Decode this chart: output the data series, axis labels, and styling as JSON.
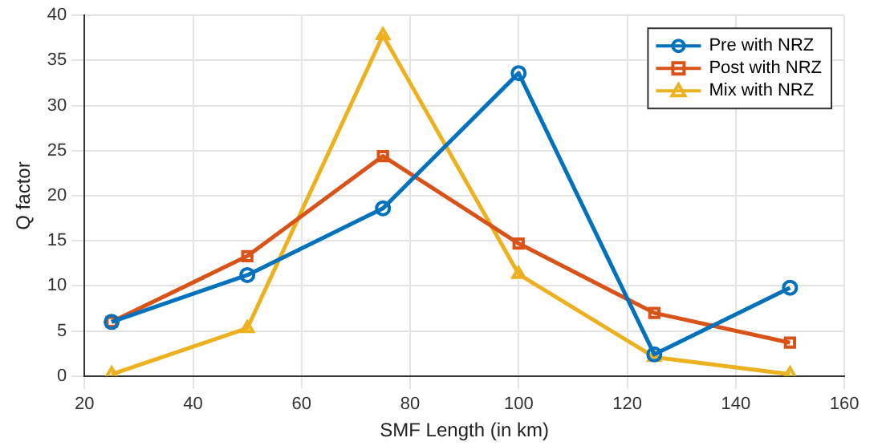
{
  "chart_data": {
    "type": "line",
    "xlabel": "SMF Length (in km)",
    "ylabel": "Q factor",
    "x": [
      25,
      50,
      75,
      100,
      125,
      150
    ],
    "series": [
      {
        "name": "Pre with NRZ",
        "color": "#0072bd",
        "marker": "circle",
        "values": [
          6,
          11.2,
          18.6,
          33.6,
          2.4,
          9.8
        ]
      },
      {
        "name": "Post with NRZ",
        "color": "#d95319",
        "marker": "square",
        "values": [
          6,
          13.3,
          24.4,
          14.7,
          7,
          3.7
        ]
      },
      {
        "name": "Mix with NRZ",
        "color": "#edb120",
        "marker": "triangle",
        "values": [
          0.2,
          5.3,
          37.8,
          11.3,
          2.1,
          0.2
        ]
      }
    ],
    "xlim": [
      20,
      160
    ],
    "xticks": [
      20,
      40,
      60,
      80,
      100,
      120,
      140,
      160
    ],
    "ylim": [
      0,
      40
    ],
    "yticks": [
      0,
      5,
      10,
      15,
      20,
      25,
      30,
      35,
      40
    ],
    "grid": true,
    "legend": "top right",
    "line_style": "solid"
  }
}
